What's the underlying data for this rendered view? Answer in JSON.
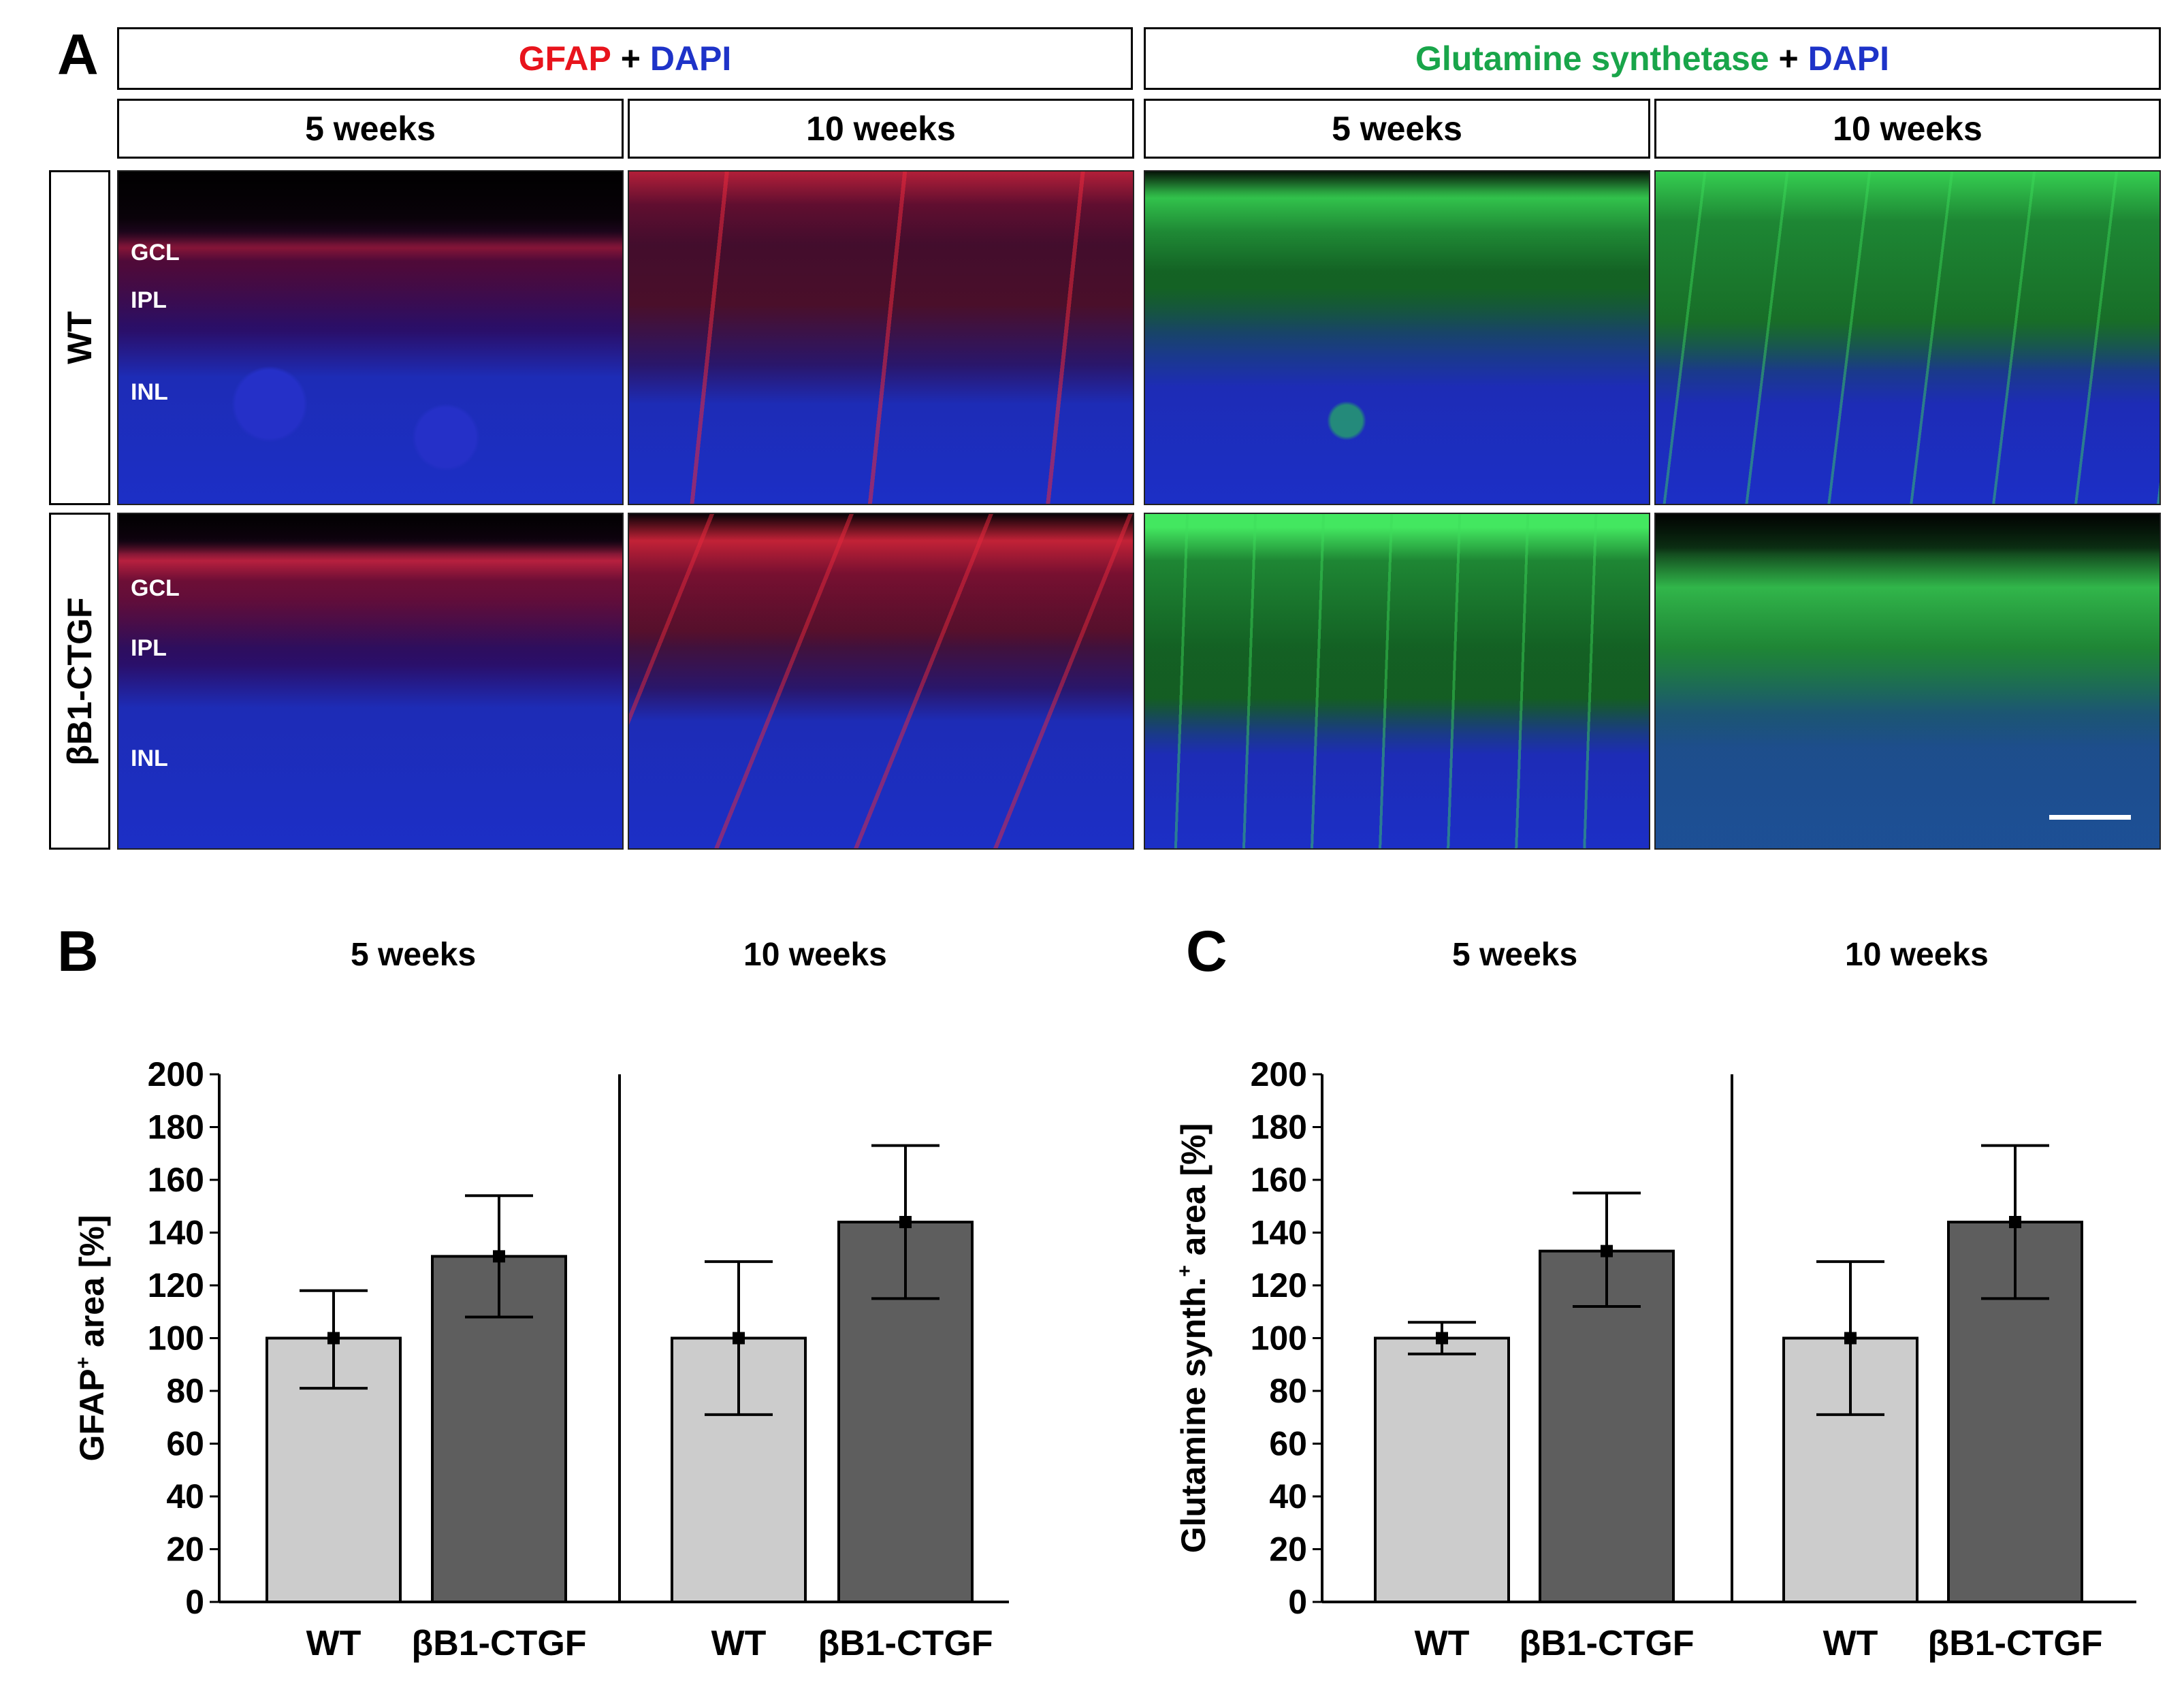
{
  "panel_a": {
    "letter": "A",
    "header_left": {
      "part1": "GFAP",
      "plus": " + ",
      "part2": "DAPI"
    },
    "header_right": {
      "part1": "Glutamine synthetase",
      "plus": " + ",
      "part2": "DAPI"
    },
    "time_labels": [
      "5 weeks",
      "10 weeks",
      "5 weeks",
      "10 weeks"
    ],
    "row_labels": [
      "WT",
      "βB1-CTGF"
    ],
    "layer_labels": [
      "GCL",
      "IPL",
      "INL"
    ],
    "colors": {
      "gfap": "#e8141c",
      "dapi": "#1e33c8",
      "gs": "#19a54a"
    }
  },
  "chart_data": [
    {
      "panel": "B",
      "type": "bar",
      "group_labels": [
        "5 weeks",
        "10 weeks"
      ],
      "categories": [
        "WT",
        "βB1-CTGF",
        "WT",
        "βB1-CTGF"
      ],
      "values": [
        100,
        131,
        100,
        144
      ],
      "error_low": [
        81,
        108,
        71,
        115
      ],
      "error_high": [
        118,
        154,
        129,
        173
      ],
      "bar_colors": [
        "#cccccc",
        "#5e5e5e",
        "#cccccc",
        "#5e5e5e"
      ],
      "ylabel": {
        "main": "GFAP",
        "sup": "+",
        "rest": " area [%]"
      },
      "ylim": [
        0,
        200
      ],
      "yticks": [
        "0",
        "20",
        "40",
        "60",
        "80",
        "100",
        "120",
        "140",
        "160",
        "180",
        "200"
      ]
    },
    {
      "panel": "C",
      "type": "bar",
      "group_labels": [
        "5 weeks",
        "10 weeks"
      ],
      "categories": [
        "WT",
        "βB1-CTGF",
        "WT",
        "βB1-CTGF"
      ],
      "values": [
        100,
        133,
        100,
        144
      ],
      "error_low": [
        94,
        112,
        71,
        115
      ],
      "error_high": [
        106,
        155,
        129,
        173
      ],
      "bar_colors": [
        "#cccccc",
        "#5e5e5e",
        "#cccccc",
        "#5e5e5e"
      ],
      "ylabel": {
        "main": "Glutamine synth.",
        "sup": "+",
        "rest": " area [%]"
      },
      "ylim": [
        0,
        200
      ],
      "yticks": [
        "0",
        "20",
        "40",
        "60",
        "80",
        "100",
        "120",
        "140",
        "160",
        "180",
        "200"
      ]
    }
  ]
}
